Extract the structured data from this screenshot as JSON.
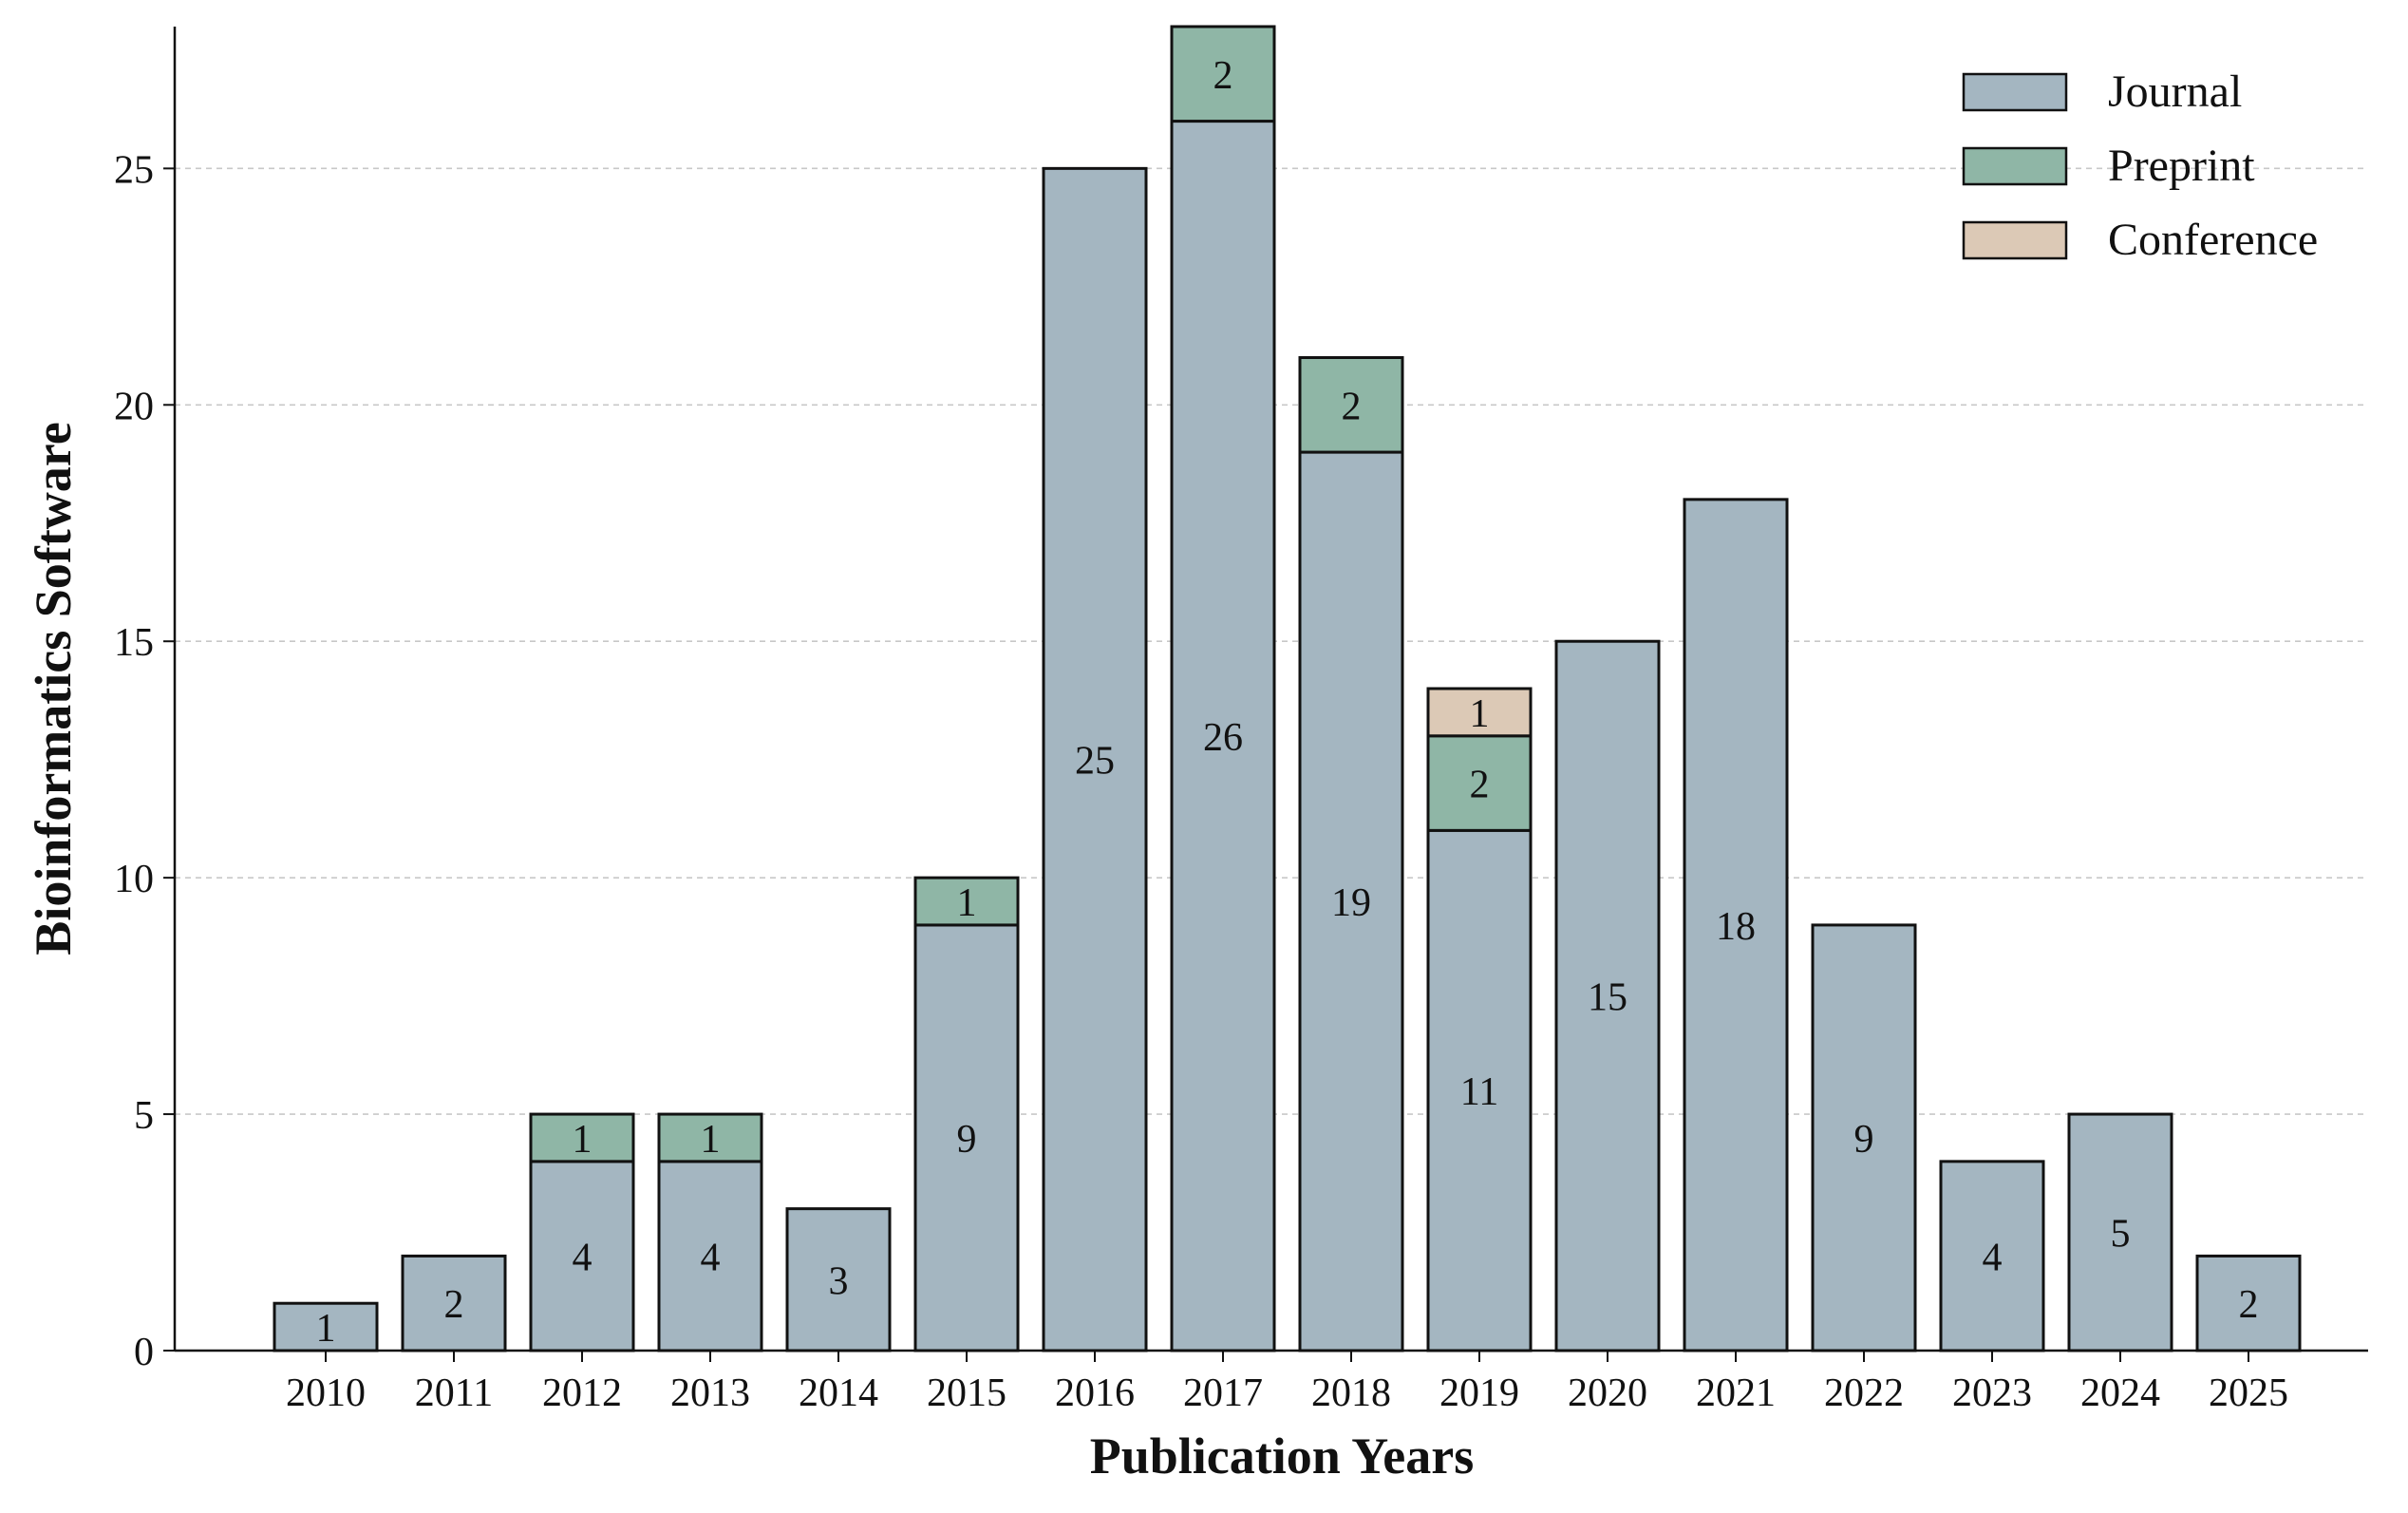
{
  "chart_data": {
    "type": "bar",
    "stacked": true,
    "xlabel": "Publication Years",
    "ylabel": "Bioinformatics Software",
    "categories": [
      "2010",
      "2011",
      "2012",
      "2013",
      "2014",
      "2015",
      "2016",
      "2017",
      "2018",
      "2019",
      "2020",
      "2021",
      "2022",
      "2023",
      "2024",
      "2025"
    ],
    "series": [
      {
        "name": "Journal",
        "color": "#a4b6c1",
        "values": [
          1,
          2,
          4,
          4,
          3,
          9,
          25,
          26,
          19,
          11,
          15,
          18,
          9,
          4,
          5,
          2
        ]
      },
      {
        "name": "Preprint",
        "color": "#8fb6a6",
        "values": [
          0,
          0,
          1,
          1,
          0,
          1,
          0,
          2,
          2,
          2,
          0,
          0,
          0,
          0,
          0,
          0
        ]
      },
      {
        "name": "Conference",
        "color": "#dcc9b6",
        "values": [
          0,
          0,
          0,
          0,
          0,
          0,
          0,
          0,
          0,
          1,
          0,
          0,
          0,
          0,
          0,
          0
        ]
      }
    ],
    "ylim": [
      0,
      28
    ],
    "yticks": [
      0,
      5,
      10,
      15,
      20,
      25
    ],
    "grid": "horizontal-dashed",
    "legend_position": "top-right"
  }
}
